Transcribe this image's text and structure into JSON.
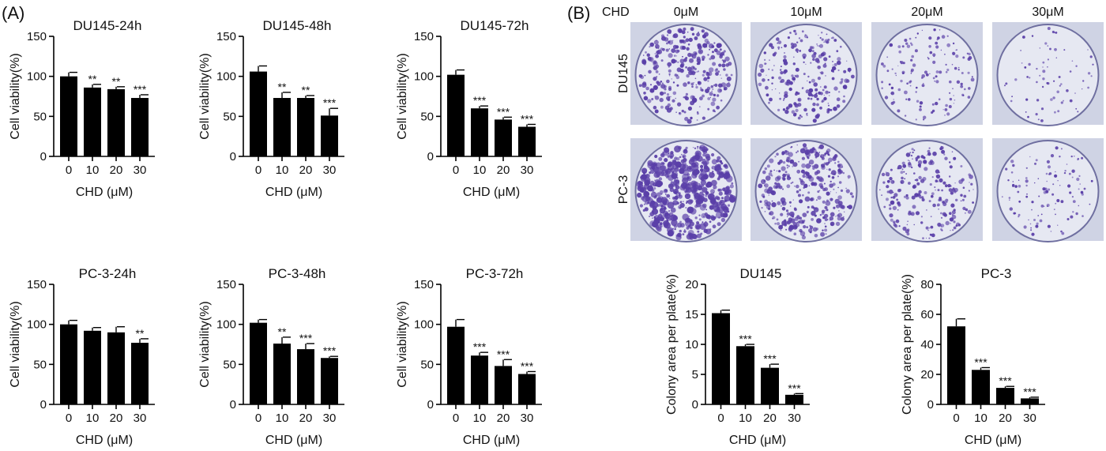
{
  "panel_a_label": "(A)",
  "panel_b_label": "(B)",
  "chart_data": [
    {
      "type": "bar",
      "title": "DU145-24h",
      "categories": [
        "0",
        "10",
        "20",
        "30"
      ],
      "values": [
        100,
        86,
        84,
        73
      ],
      "errors": [
        5,
        4,
        3,
        4
      ],
      "significance": [
        "",
        "**",
        "**",
        "***"
      ],
      "xlabel": "CHD (μM)",
      "ylabel": "Cell viability(%)",
      "ylim": [
        0,
        150
      ],
      "yticks": [
        0,
        50,
        100,
        150
      ]
    },
    {
      "type": "bar",
      "title": "DU145-48h",
      "categories": [
        "0",
        "10",
        "20",
        "30"
      ],
      "values": [
        106,
        73,
        73,
        51
      ],
      "errors": [
        7,
        7,
        3,
        9
      ],
      "significance": [
        "",
        "**",
        "**",
        "***"
      ],
      "xlabel": "CHD (μM)",
      "ylabel": "Cell viability(%)",
      "ylim": [
        0,
        150
      ],
      "yticks": [
        0,
        50,
        100,
        150
      ]
    },
    {
      "type": "bar",
      "title": "DU145-72h",
      "categories": [
        "0",
        "10",
        "20",
        "30"
      ],
      "values": [
        102,
        60,
        46,
        37
      ],
      "errors": [
        6,
        3,
        3,
        3
      ],
      "significance": [
        "",
        "***",
        "***",
        "***"
      ],
      "xlabel": "CHD (μM)",
      "ylabel": "Cell viability(%)",
      "ylim": [
        0,
        150
      ],
      "yticks": [
        0,
        50,
        100,
        150
      ]
    },
    {
      "type": "bar",
      "title": "PC-3-24h",
      "categories": [
        "0",
        "10",
        "20",
        "30"
      ],
      "values": [
        100,
        92,
        90,
        77
      ],
      "errors": [
        5,
        4,
        7,
        5
      ],
      "significance": [
        "",
        "",
        "",
        "**"
      ],
      "xlabel": "CHD (μM)",
      "ylabel": "Cell viability(%)",
      "ylim": [
        0,
        150
      ],
      "yticks": [
        0,
        50,
        100,
        150
      ]
    },
    {
      "type": "bar",
      "title": "PC-3-48h",
      "categories": [
        "0",
        "10",
        "20",
        "30"
      ],
      "values": [
        102,
        76,
        69,
        58
      ],
      "errors": [
        4,
        8,
        7,
        2
      ],
      "significance": [
        "",
        "**",
        "***",
        "***"
      ],
      "xlabel": "CHD (μM)",
      "ylabel": "Cell viability(%)",
      "ylim": [
        0,
        150
      ],
      "yticks": [
        0,
        50,
        100,
        150
      ]
    },
    {
      "type": "bar",
      "title": "PC-3-72h",
      "categories": [
        "0",
        "10",
        "20",
        "30"
      ],
      "values": [
        97,
        61,
        48,
        38
      ],
      "errors": [
        9,
        4,
        8,
        3
      ],
      "significance": [
        "",
        "***",
        "***",
        "***"
      ],
      "xlabel": "CHD (μM)",
      "ylabel": "Cell viability(%)",
      "ylim": [
        0,
        150
      ],
      "yticks": [
        0,
        50,
        100,
        150
      ]
    },
    {
      "type": "bar",
      "title": "DU145",
      "categories": [
        "0",
        "10",
        "20",
        "30"
      ],
      "values": [
        15.2,
        9.7,
        6.1,
        1.6
      ],
      "errors": [
        0.5,
        0.3,
        0.6,
        0.2
      ],
      "significance": [
        "",
        "***",
        "***",
        "***"
      ],
      "xlabel": "CHD (μM)",
      "ylabel": "Colony area per plate(%)",
      "ylim": [
        0,
        20
      ],
      "yticks": [
        0,
        5,
        10,
        15,
        20
      ]
    },
    {
      "type": "bar",
      "title": "PC-3",
      "categories": [
        "0",
        "10",
        "20",
        "30"
      ],
      "values": [
        52,
        23,
        11,
        4
      ],
      "errors": [
        5,
        1.5,
        1,
        0.8
      ],
      "significance": [
        "",
        "***",
        "***",
        "***"
      ],
      "xlabel": "CHD (μM)",
      "ylabel": "Colony area per plate(%)",
      "ylim": [
        0,
        80
      ],
      "yticks": [
        0,
        20,
        40,
        60,
        80
      ]
    }
  ],
  "plates": {
    "chd_label": "CHD",
    "concentrations": [
      "0μM",
      "10μM",
      "20μM",
      "30μM"
    ],
    "rows": [
      {
        "label": "DU145",
        "densities": [
          0.55,
          0.4,
          0.22,
          0.08
        ]
      },
      {
        "label": "PC-3",
        "densities": [
          1.0,
          0.62,
          0.4,
          0.16
        ]
      }
    ],
    "background_color": "#cfd3e4",
    "stain_color": "#5a3fa8"
  }
}
